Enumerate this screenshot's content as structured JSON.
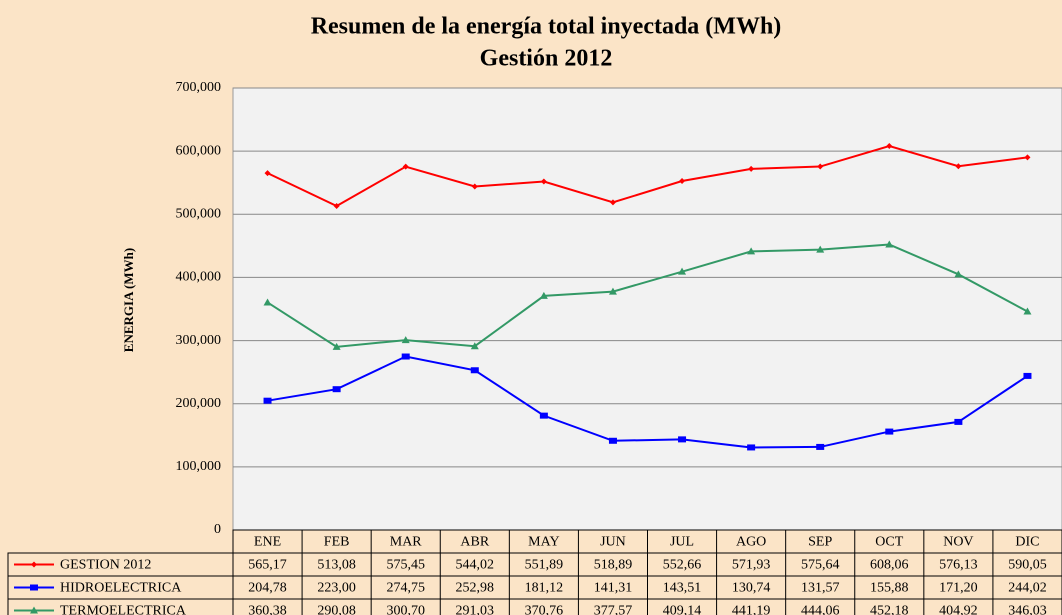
{
  "chart_data": {
    "type": "line",
    "title": "Resumen de la energía total inyectada (MWh)",
    "subtitle": "Gestión 2012",
    "y_label": "ENERGIA (MWh)",
    "categories": [
      "ENE",
      "FEB",
      "MAR",
      "ABR",
      "MAY",
      "JUN",
      "JUL",
      "AGO",
      "SEP",
      "OCT",
      "NOV",
      "DIC"
    ],
    "series": [
      {
        "name": "GESTION 2012",
        "color": "#ff0000",
        "marker": "diamond",
        "values": [
          565.17,
          513.08,
          575.45,
          544.02,
          551.89,
          518.89,
          552.66,
          571.93,
          575.64,
          608.06,
          576.13,
          590.05
        ],
        "value_labels": [
          "565,17",
          "513,08",
          "575,45",
          "544,02",
          "551,89",
          "518,89",
          "552,66",
          "571,93",
          "575,64",
          "608,06",
          "576,13",
          "590,05"
        ]
      },
      {
        "name": "HIDROELECTRICA",
        "color": "#0000ff",
        "marker": "square",
        "values": [
          204.78,
          223.0,
          274.75,
          252.98,
          181.12,
          141.31,
          143.51,
          130.74,
          131.57,
          155.88,
          171.2,
          244.02
        ],
        "value_labels": [
          "204,78",
          "223,00",
          "274,75",
          "252,98",
          "181,12",
          "141,31",
          "143,51",
          "130,74",
          "131,57",
          "155,88",
          "171,20",
          "244,02"
        ]
      },
      {
        "name": "TERMOELECTRICA",
        "color": "#339966",
        "marker": "triangle",
        "values": [
          360.38,
          290.08,
          300.7,
          291.03,
          370.76,
          377.57,
          409.14,
          441.19,
          444.06,
          452.18,
          404.92,
          346.03
        ],
        "value_labels": [
          "360,38",
          "290,08",
          "300,70",
          "291,03",
          "370,76",
          "377,57",
          "409,14",
          "441,19",
          "444,06",
          "452,18",
          "404,92",
          "346,03"
        ]
      }
    ],
    "ylim": [
      0,
      700
    ],
    "yticks": [
      0,
      {
        "value": 100,
        "label": "100,000"
      },
      {
        "value": 200,
        "label": "200,000"
      },
      {
        "value": 300,
        "label": "300,000"
      },
      {
        "value": 400,
        "label": "400,000"
      },
      {
        "value": 500,
        "label": "500,000"
      },
      {
        "value": 600,
        "label": "600,000"
      },
      {
        "value": 700,
        "label": "700,000"
      }
    ],
    "grid": true
  }
}
